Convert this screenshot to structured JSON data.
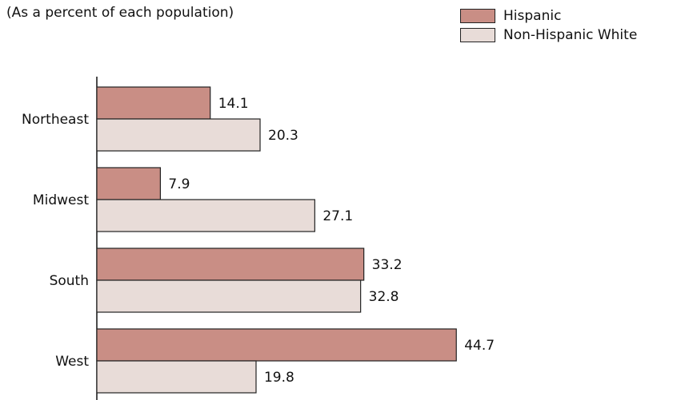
{
  "chart_data": {
    "type": "bar",
    "orientation": "horizontal",
    "subtitle": "(As a percent of each population)",
    "categories": [
      "Northeast",
      "Midwest",
      "South",
      "West"
    ],
    "series": [
      {
        "name": "Hispanic",
        "values": [
          14.1,
          7.9,
          33.2,
          44.7
        ],
        "color": "#c98e85"
      },
      {
        "name": "Non-Hispanic White",
        "values": [
          20.3,
          27.1,
          32.8,
          19.8
        ],
        "color": "#e8dcd8"
      }
    ],
    "xlim": [
      0,
      50
    ],
    "grid": false,
    "legend_position": "top-right",
    "data_labels": true
  }
}
